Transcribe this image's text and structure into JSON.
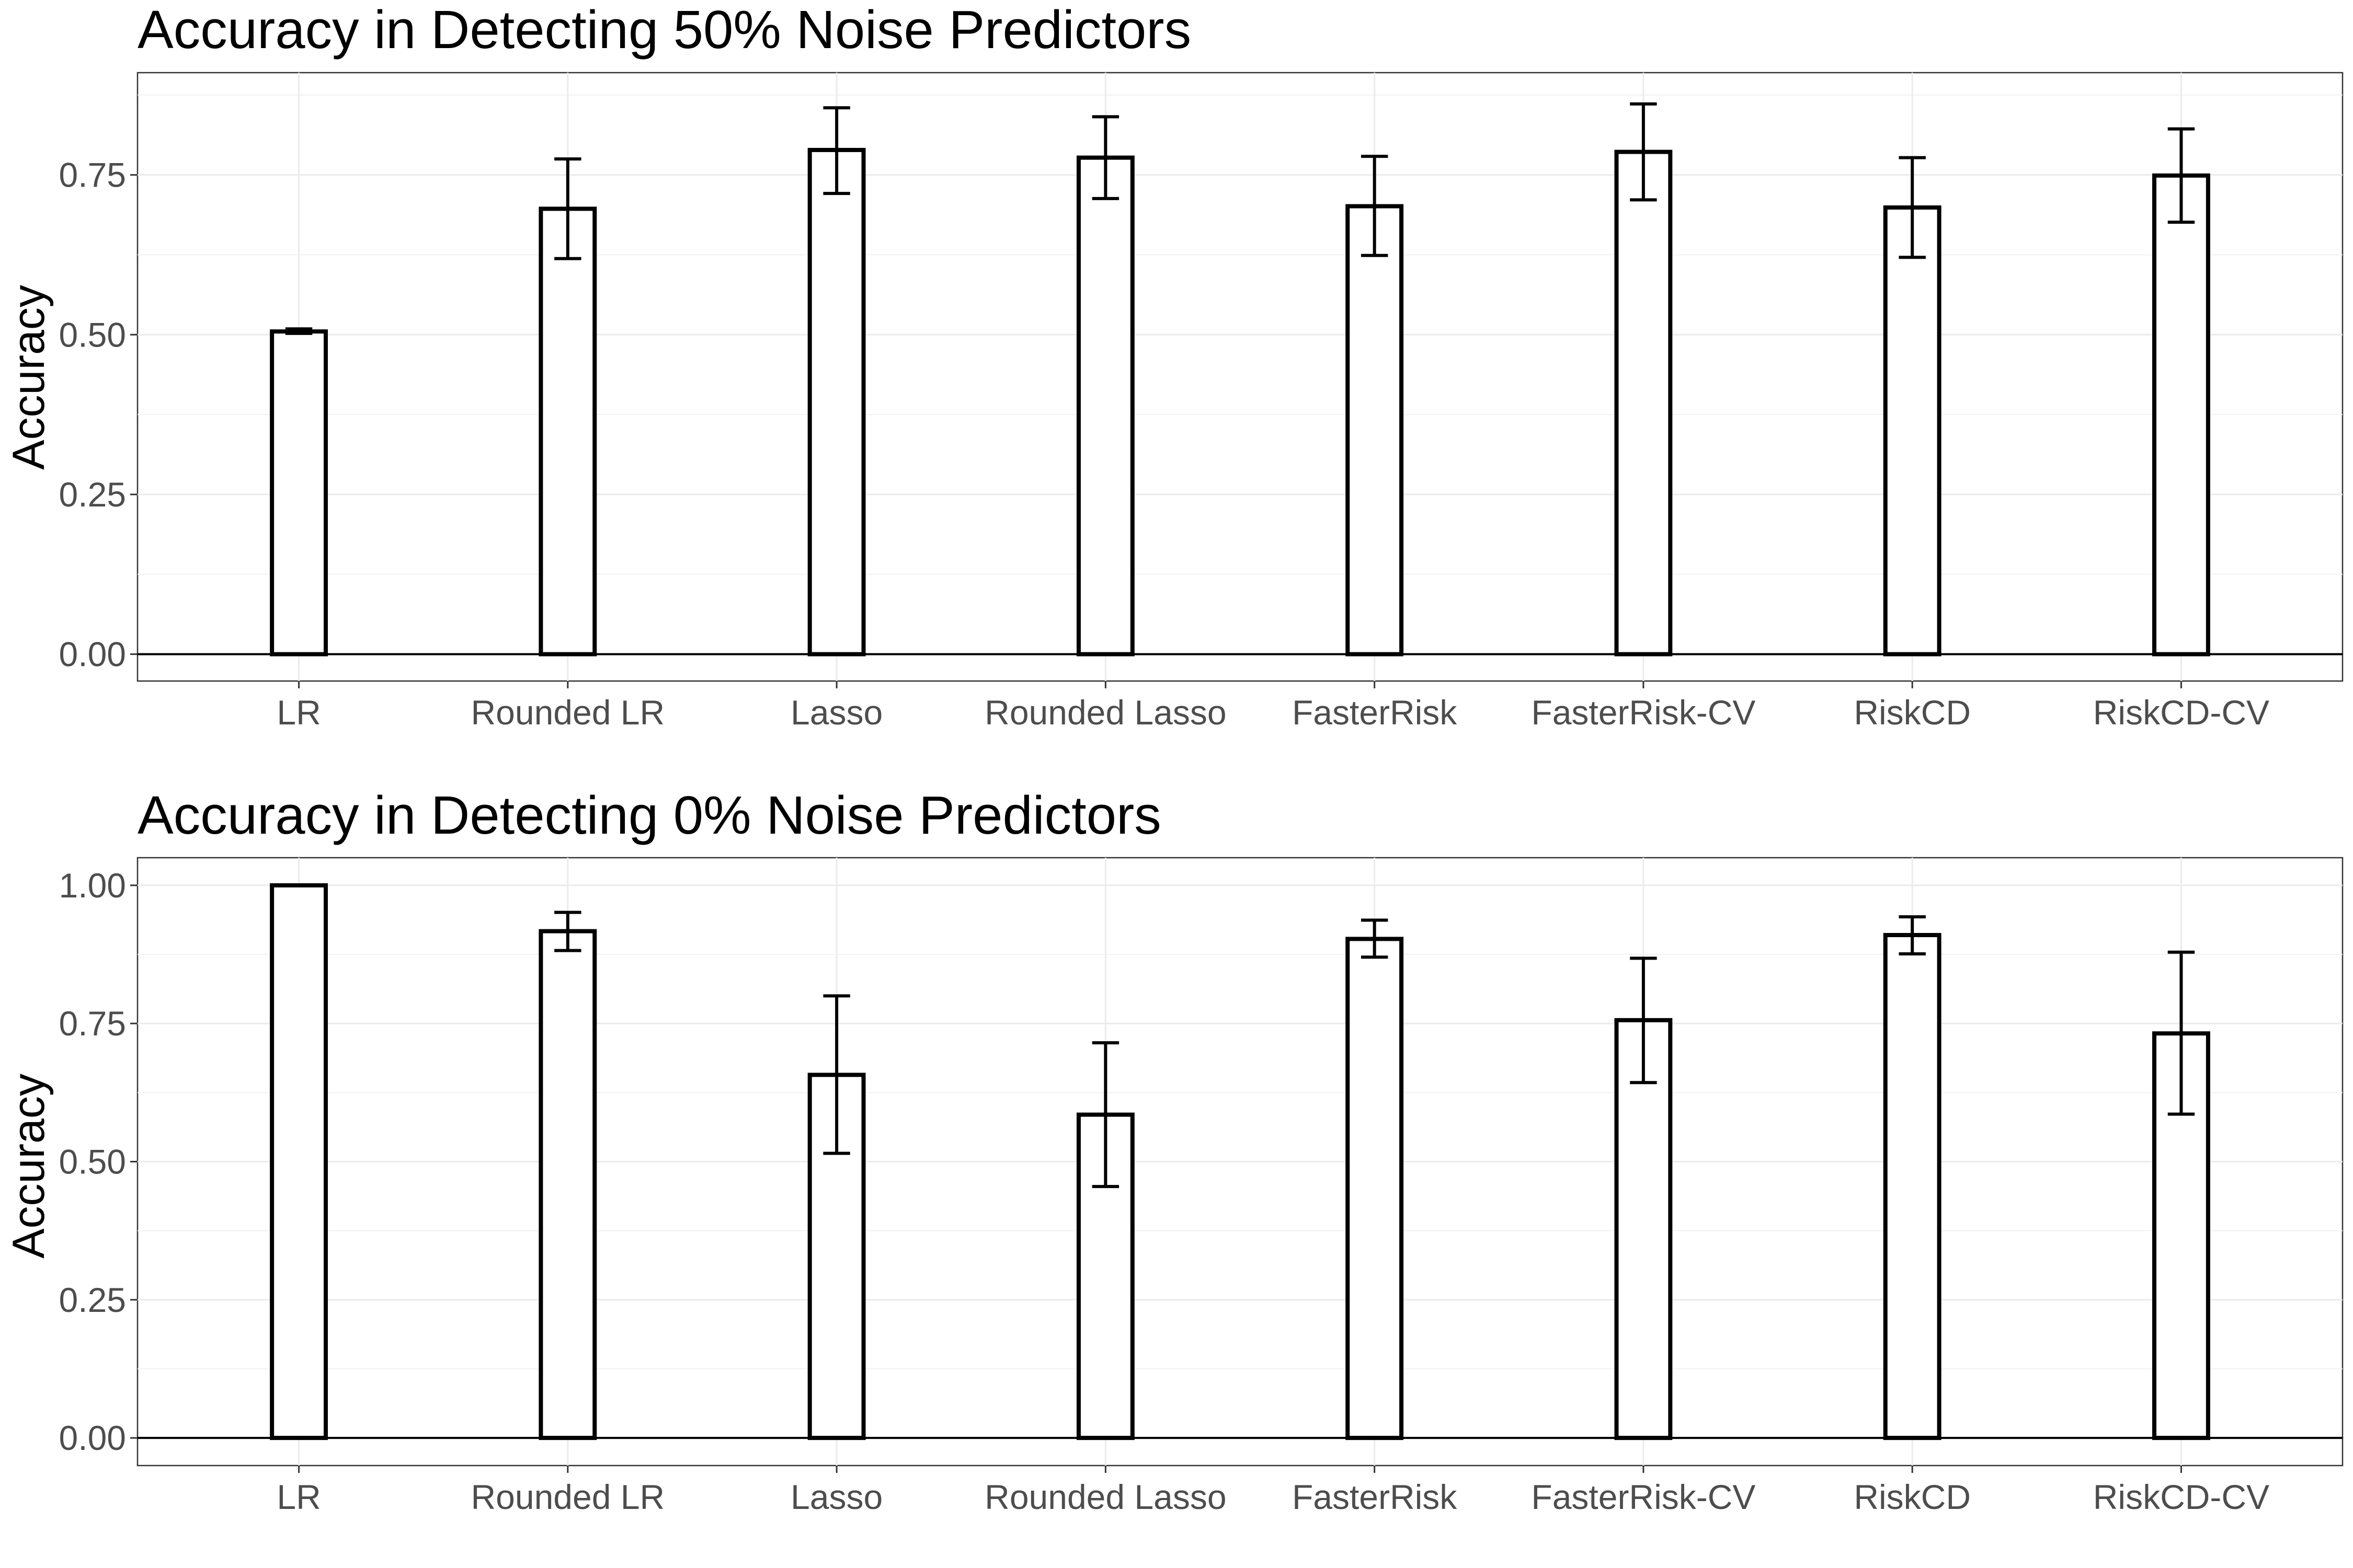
{
  "chart_data": [
    {
      "type": "bar",
      "title": "Accuracy in Detecting 50% Noise Predictors",
      "xlabel": "",
      "ylabel": "Accuracy",
      "categories": [
        "LR",
        "Rounded LR",
        "Lasso",
        "Rounded Lasso",
        "FasterRisk",
        "FasterRisk-CV",
        "RiskCD",
        "RiskCD-CV"
      ],
      "values": [
        0.505,
        0.697,
        0.789,
        0.777,
        0.701,
        0.786,
        0.699,
        0.749
      ],
      "error_low": [
        0.502,
        0.619,
        0.721,
        0.713,
        0.624,
        0.711,
        0.621,
        0.676
      ],
      "error_high": [
        0.509,
        0.775,
        0.855,
        0.841,
        0.779,
        0.861,
        0.777,
        0.822
      ],
      "yticks": [
        "0.00",
        "0.25",
        "0.50",
        "0.75"
      ],
      "ytick_values": [
        0,
        0.25,
        0.5,
        0.75
      ],
      "ylim": [
        -0.042,
        0.91
      ],
      "grid": true
    },
    {
      "type": "bar",
      "title": "Accuracy in Detecting 0% Noise Predictors",
      "xlabel": "",
      "ylabel": "Accuracy",
      "categories": [
        "LR",
        "Rounded LR",
        "Lasso",
        "Rounded Lasso",
        "FasterRisk",
        "FasterRisk-CV",
        "RiskCD",
        "RiskCD-CV"
      ],
      "values": [
        1.0,
        0.917,
        0.657,
        0.585,
        0.903,
        0.756,
        0.91,
        0.732
      ],
      "error_low": [
        1.0,
        0.882,
        0.515,
        0.455,
        0.87,
        0.643,
        0.876,
        0.586
      ],
      "error_high": [
        1.0,
        0.951,
        0.8,
        0.715,
        0.937,
        0.868,
        0.943,
        0.879
      ],
      "yticks": [
        "0.00",
        "0.25",
        "0.50",
        "0.75",
        "1.00"
      ],
      "ytick_values": [
        0,
        0.25,
        0.5,
        0.75,
        1.0
      ],
      "ylim": [
        -0.05,
        1.05
      ],
      "grid": true
    }
  ]
}
